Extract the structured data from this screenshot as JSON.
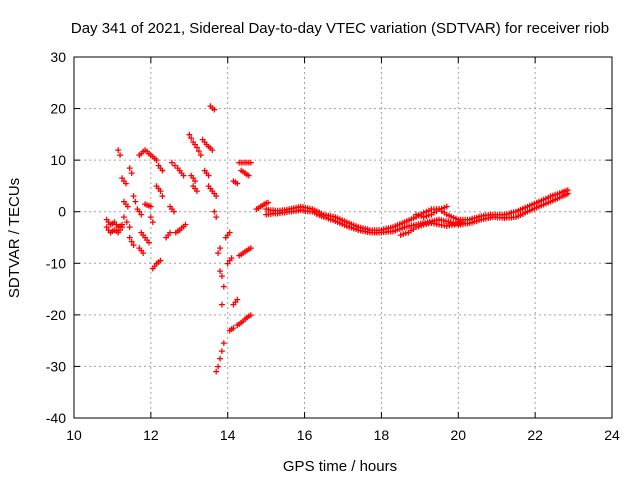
{
  "chart_data": {
    "type": "scatter",
    "title": "Day 341 of 2021, Sidereal Day-to-day VTEC variation (SDTVAR) for receiver riob",
    "xlabel": "GPS time / hours",
    "ylabel": "SDTVAR / TECUs",
    "xlim": [
      10,
      24
    ],
    "ylim": [
      -40,
      30
    ],
    "xticks": [
      10,
      12,
      14,
      16,
      18,
      20,
      22,
      24
    ],
    "yticks": [
      -40,
      -30,
      -20,
      -10,
      0,
      10,
      20,
      30
    ],
    "grid": true,
    "marker": "+",
    "color": "#ff0000",
    "segments": [
      {
        "x": [
          10.85,
          10.95,
          11.05,
          11.15,
          11.25
        ],
        "y": [
          -1.5,
          -2.5,
          -2.0,
          -3.0,
          -2.5
        ]
      },
      {
        "x": [
          10.85,
          10.95,
          11.05,
          11.15,
          11.25
        ],
        "y": [
          -3.0,
          -4.0,
          -3.5,
          -4.0,
          -3.0
        ]
      },
      {
        "x": [
          11.15,
          11.2
        ],
        "y": [
          12.0,
          11.0
        ]
      },
      {
        "x": [
          11.25,
          11.35
        ],
        "y": [
          6.5,
          5.5
        ]
      },
      {
        "x": [
          11.3,
          11.4
        ],
        "y": [
          2.0,
          1.0
        ]
      },
      {
        "x": [
          11.3,
          11.45
        ],
        "y": [
          -1.0,
          -3.0
        ]
      },
      {
        "x": [
          11.45,
          11.5
        ],
        "y": [
          8.5,
          7.5
        ]
      },
      {
        "x": [
          11.45,
          11.55
        ],
        "y": [
          -5.0,
          -6.5
        ]
      },
      {
        "x": [
          11.55,
          11.6
        ],
        "y": [
          3.0,
          2.0
        ]
      },
      {
        "x": [
          11.65,
          11.75
        ],
        "y": [
          0.5,
          -0.5
        ]
      },
      {
        "x": [
          11.7,
          11.85,
          12.0,
          12.15
        ],
        "y": [
          11.0,
          12.0,
          11.0,
          10.0
        ]
      },
      {
        "x": [
          11.7,
          11.8
        ],
        "y": [
          -7.0,
          -8.0
        ]
      },
      {
        "x": [
          11.75,
          11.85,
          11.95
        ],
        "y": [
          -4.0,
          -5.0,
          -6.0
        ]
      },
      {
        "x": [
          11.85,
          12.0
        ],
        "y": [
          1.5,
          1.0
        ]
      },
      {
        "x": [
          12.0,
          12.05
        ],
        "y": [
          -1.0,
          -2.0
        ]
      },
      {
        "x": [
          12.05,
          12.15,
          12.25
        ],
        "y": [
          -11.0,
          -10.0,
          -9.5
        ]
      },
      {
        "x": [
          12.15,
          12.25,
          12.3
        ],
        "y": [
          5.0,
          4.0,
          3.0
        ]
      },
      {
        "x": [
          12.2,
          12.3
        ],
        "y": [
          9.0,
          8.0
        ]
      },
      {
        "x": [
          12.4,
          12.5
        ],
        "y": [
          -5.0,
          -4.0
        ]
      },
      {
        "x": [
          12.5,
          12.6
        ],
        "y": [
          1.0,
          0.0
        ]
      },
      {
        "x": [
          12.55,
          12.7,
          12.85
        ],
        "y": [
          9.5,
          8.5,
          7.0
        ]
      },
      {
        "x": [
          12.65,
          12.75,
          12.9
        ],
        "y": [
          -4.0,
          -3.5,
          -2.5
        ]
      },
      {
        "x": [
          13.0,
          13.1,
          13.2,
          13.3
        ],
        "y": [
          15.0,
          13.5,
          12.5,
          11.0
        ]
      },
      {
        "x": [
          13.05,
          13.15
        ],
        "y": [
          7.0,
          6.0
        ]
      },
      {
        "x": [
          13.1,
          13.2
        ],
        "y": [
          5.0,
          4.0
        ]
      },
      {
        "x": [
          13.35,
          13.45,
          13.6
        ],
        "y": [
          14.0,
          13.0,
          12.0
        ]
      },
      {
        "x": [
          13.4,
          13.5
        ],
        "y": [
          8.0,
          7.0
        ]
      },
      {
        "x": [
          13.5,
          13.6,
          13.7
        ],
        "y": [
          5.0,
          4.0,
          3.0
        ]
      },
      {
        "x": [
          13.55,
          13.65
        ],
        "y": [
          20.5,
          19.8
        ]
      },
      {
        "x": [
          13.65,
          13.7
        ],
        "y": [
          0.0,
          -1.0
        ]
      },
      {
        "x": [
          13.75,
          13.8
        ],
        "y": [
          -8.0,
          -7.0
        ]
      },
      {
        "x": [
          13.7,
          13.75,
          13.8,
          13.85,
          13.9
        ],
        "y": [
          -31.0,
          -30.0,
          -28.5,
          -27.0,
          -25.5
        ]
      },
      {
        "x": [
          13.8,
          13.85
        ],
        "y": [
          -11.5,
          -12.5
        ]
      },
      {
        "x": [
          13.85,
          13.9
        ],
        "y": [
          -18.0,
          -14.5
        ]
      },
      {
        "x": [
          13.95,
          14.05
        ],
        "y": [
          -5.0,
          -4.0
        ]
      },
      {
        "x": [
          14.0,
          14.1
        ],
        "y": [
          -10.0,
          -9.0
        ]
      },
      {
        "x": [
          14.05,
          14.15
        ],
        "y": [
          -23.0,
          -22.5
        ]
      },
      {
        "x": [
          14.15,
          14.25
        ],
        "y": [
          -18.0,
          -17.0
        ]
      },
      {
        "x": [
          14.25,
          14.35,
          14.5,
          14.6
        ],
        "y": [
          -22.0,
          -21.5,
          -20.5,
          -20.0
        ]
      },
      {
        "x": [
          14.3,
          14.4,
          14.5,
          14.6
        ],
        "y": [
          -8.5,
          -8.0,
          -7.5,
          -7.0
        ]
      },
      {
        "x": [
          14.3,
          14.4,
          14.5,
          14.6
        ],
        "y": [
          9.5,
          9.5,
          9.5,
          9.5
        ]
      },
      {
        "x": [
          14.35,
          14.45,
          14.55
        ],
        "y": [
          8.0,
          7.5,
          7.0
        ]
      },
      {
        "x": [
          14.15,
          14.25
        ],
        "y": [
          6.0,
          5.5
        ]
      },
      {
        "x": [
          14.75,
          14.85,
          14.95,
          15.05
        ],
        "y": [
          0.5,
          1.0,
          1.5,
          1.8
        ]
      },
      {
        "x": [
          15.0,
          15.3,
          15.6,
          15.9,
          16.2,
          16.5,
          16.8,
          17.1,
          17.4,
          17.7,
          18.0,
          18.3,
          18.6,
          18.9,
          19.1,
          19.3,
          19.5,
          19.7,
          20.0,
          20.3,
          20.6,
          20.9,
          21.2,
          21.5,
          21.8,
          22.1,
          22.4,
          22.7,
          22.85
        ],
        "y": [
          0.5,
          0.2,
          0.5,
          1.0,
          0.5,
          -0.5,
          -1.0,
          -2.0,
          -3.0,
          -3.5,
          -3.5,
          -3.0,
          -2.0,
          -1.0,
          -0.2,
          0.5,
          0.5,
          -0.5,
          -1.5,
          -1.5,
          -0.8,
          -0.5,
          -0.5,
          0.0,
          1.0,
          2.0,
          3.0,
          3.8,
          4.2
        ]
      },
      {
        "x": [
          15.0,
          15.3,
          15.6,
          15.9,
          16.2,
          16.5,
          16.8,
          17.1,
          17.4,
          17.7,
          18.0,
          18.3,
          18.6,
          18.9,
          19.2,
          19.5,
          19.8,
          20.0,
          20.3,
          20.6,
          20.9,
          21.2,
          21.5,
          21.8,
          22.1,
          22.4,
          22.7,
          22.85
        ],
        "y": [
          -0.5,
          -0.3,
          0.0,
          0.3,
          0.0,
          -1.0,
          -1.8,
          -2.8,
          -3.5,
          -4.0,
          -4.0,
          -3.8,
          -3.0,
          -2.5,
          -2.0,
          -1.5,
          -2.0,
          -2.5,
          -2.2,
          -1.5,
          -1.0,
          -1.2,
          -1.0,
          0.0,
          1.0,
          2.0,
          3.0,
          3.5
        ]
      },
      {
        "x": [
          18.5,
          18.7,
          18.9,
          19.1,
          19.3,
          19.5,
          19.7,
          19.9,
          20.1
        ],
        "y": [
          -4.5,
          -4.0,
          -3.0,
          -2.5,
          -2.2,
          -2.5,
          -2.8,
          -2.5,
          -2.0
        ]
      },
      {
        "x": [
          18.9,
          19.1,
          19.3,
          19.5,
          19.7
        ],
        "y": [
          -0.5,
          -1.0,
          -0.5,
          0.5,
          1.0
        ]
      }
    ]
  }
}
